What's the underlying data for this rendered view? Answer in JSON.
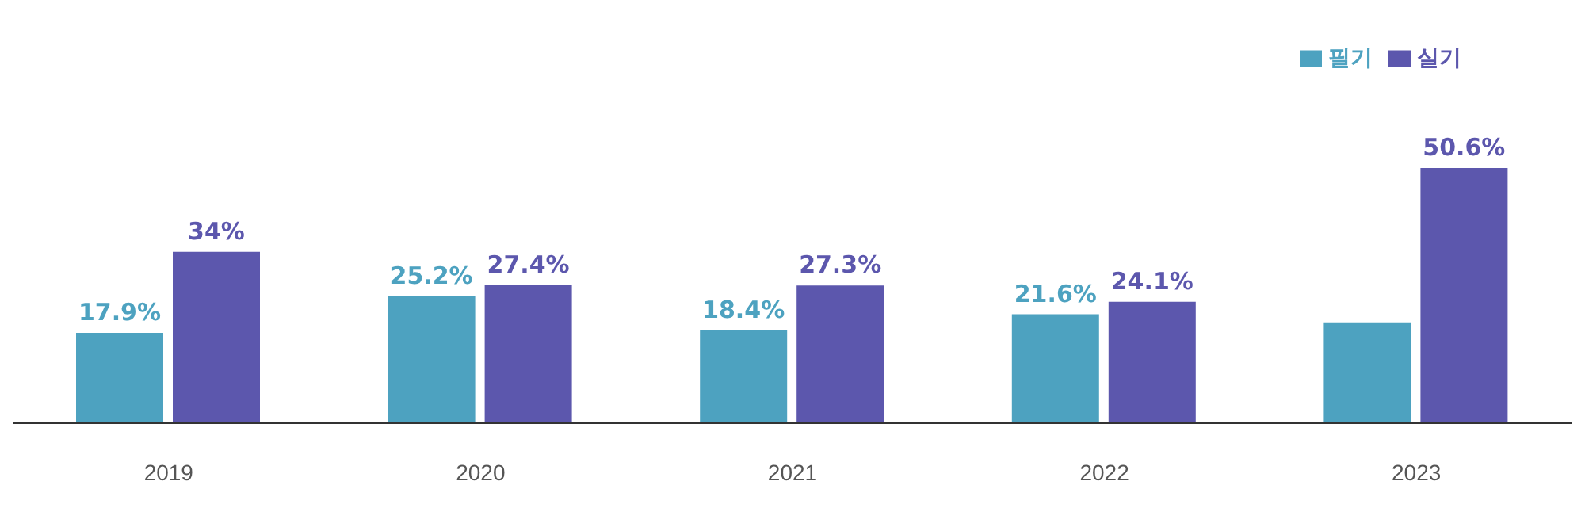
{
  "chart_data": {
    "type": "bar",
    "categories": [
      "2019",
      "2020",
      "2021",
      "2022",
      "2023"
    ],
    "series": [
      {
        "name": "필기",
        "color": "#4da2c0",
        "values": [
          17.9,
          25.2,
          18.4,
          21.6,
          20
        ],
        "value_labels": [
          "17.9%",
          "25.2%",
          "18.4%",
          "21.6%",
          null
        ]
      },
      {
        "name": "실기",
        "color": "#5c57ad",
        "values": [
          34,
          27.4,
          27.3,
          24.1,
          50.6
        ],
        "value_labels": [
          "34%",
          "27.4%",
          "27.3%",
          "24.1%",
          "50.6%"
        ]
      }
    ],
    "tick_labels": "x",
    "legend": "top right"
  }
}
